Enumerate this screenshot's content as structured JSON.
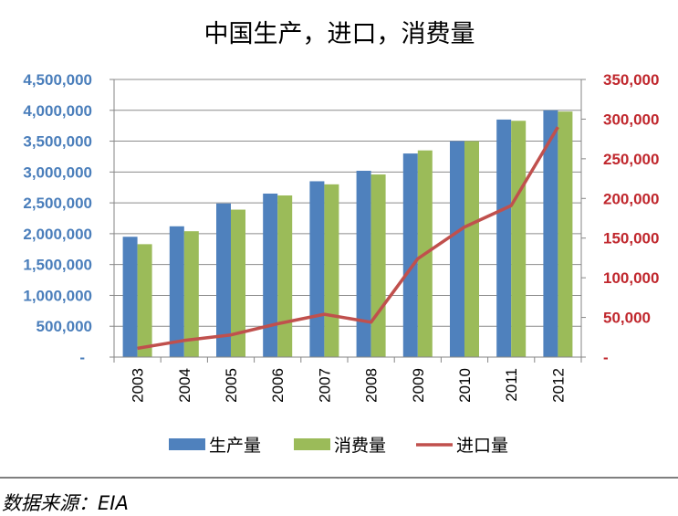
{
  "chart_data": {
    "type": "bar+line",
    "title": "中国生产，进口，消费量",
    "categories": [
      "2003",
      "2004",
      "2005",
      "2006",
      "2007",
      "2008",
      "2009",
      "2010",
      "2011",
      "2012"
    ],
    "series": [
      {
        "name": "生产量",
        "type": "bar",
        "axis": "left",
        "color": "#4f81bd",
        "values": [
          1950000,
          2120000,
          2490000,
          2650000,
          2850000,
          3020000,
          3300000,
          3500000,
          3850000,
          4000000
        ]
      },
      {
        "name": "消费量",
        "type": "bar",
        "axis": "left",
        "color": "#9bbb59",
        "values": [
          1830000,
          2040000,
          2390000,
          2620000,
          2800000,
          2960000,
          3350000,
          3500000,
          3830000,
          3980000
        ]
      },
      {
        "name": "进口量",
        "type": "line",
        "axis": "right",
        "color": "#c0504d",
        "values": [
          11000,
          21000,
          28000,
          42000,
          54000,
          44000,
          124000,
          164000,
          191000,
          290000
        ]
      }
    ],
    "y_left": {
      "ylim": [
        0,
        4500000
      ],
      "ticks": [
        0,
        500000,
        1000000,
        1500000,
        2000000,
        2500000,
        3000000,
        3500000,
        4000000,
        4500000
      ],
      "tick_labels": [
        "-",
        "500,000",
        "1,000,000",
        "1,500,000",
        "2,000,000",
        "2,500,000",
        "3,000,000",
        "3,500,000",
        "4,000,000",
        "4,500,000"
      ],
      "color": "#4a7ebb"
    },
    "y_right": {
      "ylim": [
        0,
        350000
      ],
      "ticks": [
        0,
        50000,
        100000,
        150000,
        200000,
        250000,
        300000,
        350000
      ],
      "tick_labels": [
        "-",
        "50,000",
        "100,000",
        "150,000",
        "200,000",
        "250,000",
        "300,000",
        "350,000"
      ],
      "color": "#c0272d"
    },
    "grid": true,
    "legend_position": "bottom"
  },
  "source": "数据来源：EIA"
}
